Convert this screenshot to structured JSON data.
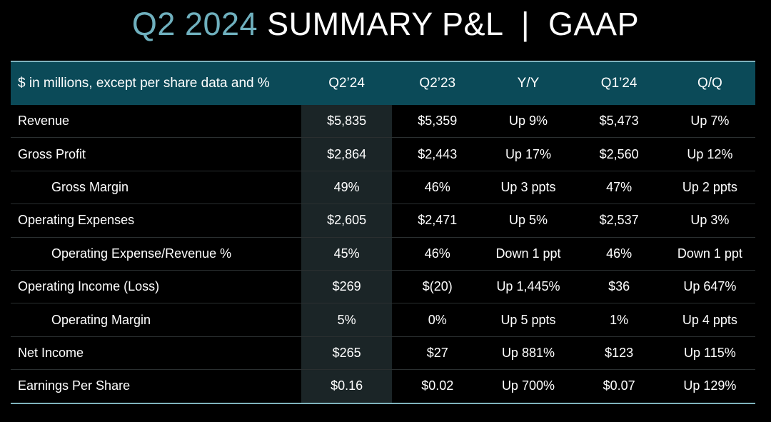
{
  "title": {
    "accent": "Q2 2024",
    "main": "SUMMARY P&L  |  GAAP"
  },
  "colors": {
    "accent": "#6fb0be",
    "header_bg": "#0b4a58",
    "highlight_col": "#1b2527"
  },
  "table": {
    "headers": [
      "$ in millions, except per share data and %",
      "Q2’24",
      "Q2’23",
      "Y/Y",
      "Q1’24",
      "Q/Q"
    ],
    "rows": [
      {
        "label": "Revenue",
        "indent": false,
        "values": [
          "$5,835",
          "$5,359",
          "Up 9%",
          "$5,473",
          "Up 7%"
        ]
      },
      {
        "label": "Gross Profit",
        "indent": false,
        "values": [
          "$2,864",
          "$2,443",
          "Up 17%",
          "$2,560",
          "Up 12%"
        ]
      },
      {
        "label": "Gross Margin",
        "indent": true,
        "values": [
          "49%",
          "46%",
          "Up 3 ppts",
          "47%",
          "Up 2 ppts"
        ]
      },
      {
        "label": "Operating Expenses",
        "indent": false,
        "values": [
          "$2,605",
          "$2,471",
          "Up 5%",
          "$2,537",
          "Up 3%"
        ]
      },
      {
        "label": "Operating Expense/Revenue %",
        "indent": true,
        "values": [
          "45%",
          "46%",
          "Down 1 ppt",
          "46%",
          "Down 1 ppt"
        ]
      },
      {
        "label": "Operating Income (Loss)",
        "indent": false,
        "values": [
          "$269",
          "$(20)",
          "Up 1,445%",
          "$36",
          "Up 647%"
        ]
      },
      {
        "label": "Operating Margin",
        "indent": true,
        "values": [
          "5%",
          "0%",
          "Up 5 ppts",
          "1%",
          "Up 4 ppts"
        ]
      },
      {
        "label": "Net Income",
        "indent": false,
        "values": [
          "$265",
          "$27",
          "Up 881%",
          "$123",
          "Up 115%"
        ]
      },
      {
        "label": "Earnings Per Share",
        "indent": false,
        "values": [
          "$0.16",
          "$0.02",
          "Up 700%",
          "$0.07",
          "Up 129%"
        ]
      }
    ]
  }
}
